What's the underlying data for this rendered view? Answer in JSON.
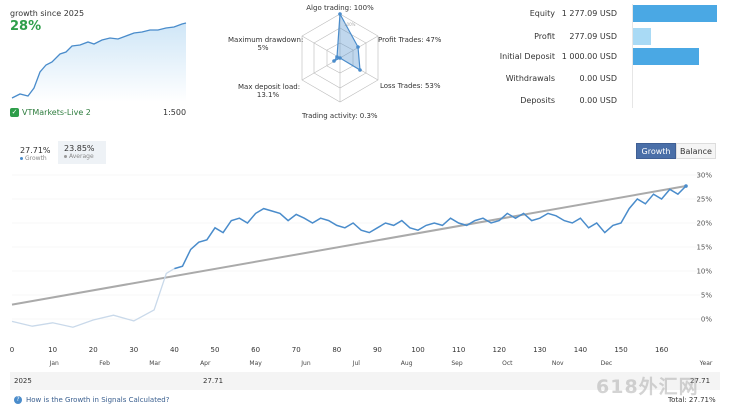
{
  "summary": {
    "growth_title": "growth since 2025",
    "growth_value": "28%",
    "broker": "VTMarkets-Live 2",
    "leverage": "1:500"
  },
  "radar": {
    "labels": {
      "algo": "Algo trading: 100%",
      "profit": "Profit Trades: 47%",
      "loss": "Loss Trades: 53%",
      "activity": "Trading activity: 0.3%",
      "load_line1": "Max deposit load:",
      "load_line2": "13.1%",
      "dd_line1": "Maximum drawdown:",
      "dd_line2": "5%"
    },
    "center_mark": "100%",
    "values": {
      "algo": 1.0,
      "profit": 0.47,
      "loss": 0.53,
      "activity": 0.003,
      "load": 0.131,
      "drawdown": 0.05
    },
    "color": "#4a8ccb"
  },
  "stats": [
    {
      "label": "Equity",
      "value": "1 277.09 USD",
      "bar_fraction": 1.0
    },
    {
      "label": "Profit",
      "value": "277.09 USD",
      "bar_fraction": 0.22
    },
    {
      "label": "Initial Deposit",
      "value": "1 000.00 USD",
      "bar_fraction": 0.78
    },
    {
      "label": "Withdrawals",
      "value": "0.00 USD",
      "bar_fraction": 0
    },
    {
      "label": "Deposits",
      "value": "0.00 USD",
      "bar_fraction": 0
    }
  ],
  "growth_box": {
    "value": "27.71%",
    "label": "Growth"
  },
  "average_box": {
    "value": "23.85%",
    "label": "Average"
  },
  "tabs": {
    "growth": "Growth",
    "balance": "Balance"
  },
  "chart_data": {
    "type": "line",
    "y_ticks": [
      "30%",
      "25%",
      "20%",
      "15%",
      "10%",
      "5%",
      "0%"
    ],
    "x_ticks": [
      "0",
      "10",
      "20",
      "30",
      "40",
      "50",
      "60",
      "70",
      "80",
      "90",
      "100",
      "110",
      "120",
      "130",
      "140",
      "150",
      "160"
    ],
    "month_ticks": [
      "Jan",
      "Feb",
      "Mar",
      "Apr",
      "May",
      "Jun",
      "Jul",
      "Aug",
      "Sep",
      "Oct",
      "Nov",
      "Dec",
      "Year"
    ],
    "ylim": [
      -2.5,
      30
    ],
    "xlim": [
      0,
      166
    ],
    "series": [
      {
        "color": "#4a8ccb",
        "x": [
          0,
          5,
          10,
          15,
          20,
          25,
          30,
          35,
          38,
          40,
          42,
          44,
          46,
          48,
          50,
          52,
          54,
          56,
          58,
          60,
          62,
          64,
          66,
          68,
          70,
          72,
          74,
          76,
          78,
          80,
          82,
          84,
          86,
          88,
          90,
          92,
          94,
          96,
          98,
          100,
          102,
          104,
          106,
          108,
          110,
          112,
          114,
          116,
          118,
          120,
          122,
          124,
          126,
          128,
          130,
          132,
          134,
          136,
          138,
          140,
          142,
          144,
          146,
          148,
          150,
          152,
          154,
          156,
          158,
          160,
          162,
          164,
          166
        ],
        "y": [
          -0.5,
          -1.5,
          -0.8,
          -1.7,
          -0.2,
          0.8,
          -0.4,
          1.9,
          9.5,
          10.5,
          11,
          14.5,
          16,
          16.5,
          19,
          18,
          20.5,
          21,
          20,
          22,
          23,
          22.5,
          22,
          20.5,
          21.8,
          21,
          20,
          21,
          20.5,
          19.5,
          19,
          20,
          18.5,
          18,
          19,
          20,
          19.5,
          20.5,
          19,
          18.5,
          19.5,
          20,
          19.5,
          21,
          20,
          19.5,
          20.5,
          21,
          20,
          20.5,
          22,
          21,
          22,
          20.5,
          21,
          22,
          21.5,
          20.5,
          20,
          21,
          19,
          20,
          18,
          19.5,
          20,
          23,
          25,
          24,
          26,
          25,
          27,
          26,
          27.7
        ],
        "faded_until_x": 40
      },
      {
        "name": "Average",
        "color": "#aaaaaa",
        "x": [
          0,
          166
        ],
        "y": [
          3,
          27.7
        ]
      }
    ]
  },
  "year_row": {
    "year": "2025",
    "value": "27.71",
    "total_value": "27.71"
  },
  "help_text": "How is the Growth in Signals Calculated?",
  "total_text": "Total: 27.71%",
  "watermark": "618外汇网"
}
